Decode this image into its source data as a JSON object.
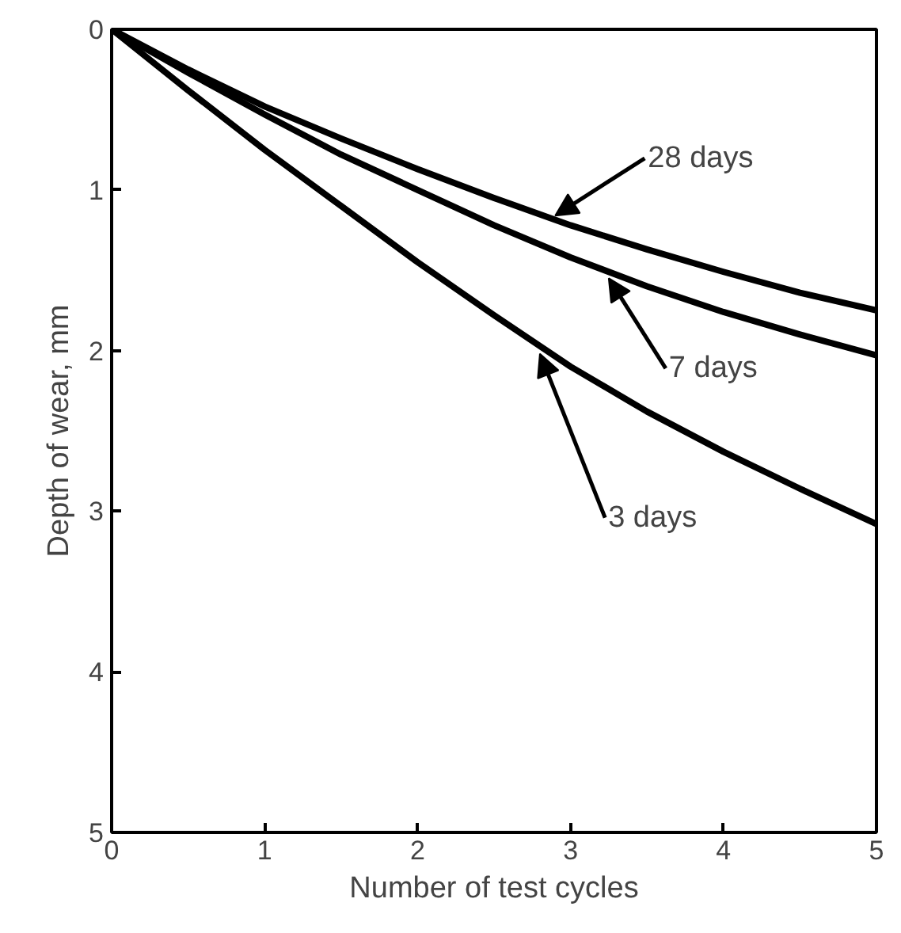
{
  "chart_data": {
    "type": "line",
    "xlabel": "Number of test cycles",
    "ylabel": "Depth of wear, mm",
    "x": [
      0,
      0.5,
      1,
      1.5,
      2,
      2.5,
      3,
      3.5,
      4,
      4.5,
      5
    ],
    "series": [
      {
        "color": "#000000",
        "values": [
          0,
          0.25,
          0.48,
          0.68,
          0.87,
          1.05,
          1.22,
          1.37,
          1.51,
          1.64,
          1.75
        ]
      },
      {
        "color": "#000000",
        "values": [
          0,
          0.27,
          0.53,
          0.78,
          1.0,
          1.22,
          1.42,
          1.6,
          1.76,
          1.9,
          2.03
        ]
      },
      {
        "color": "#000000",
        "values": [
          0,
          0.38,
          0.75,
          1.1,
          1.45,
          1.78,
          2.1,
          2.38,
          2.63,
          2.86,
          3.08
        ]
      }
    ],
    "xlim": [
      0,
      5
    ],
    "ylim": [
      5,
      0
    ],
    "xticks": [
      0,
      1,
      2,
      3,
      4,
      5
    ],
    "yticks": [
      0,
      1,
      2,
      3,
      4,
      5
    ],
    "annotations": [
      {
        "text": "28 days",
        "x": 2.9,
        "y": 1.16
      },
      {
        "text": "7 days",
        "x": 3.25,
        "y": 1.55
      },
      {
        "text": "3 days",
        "x": 2.8,
        "y": 2.02
      }
    ],
    "grid": false,
    "marker": "none",
    "line_style": "solid"
  }
}
